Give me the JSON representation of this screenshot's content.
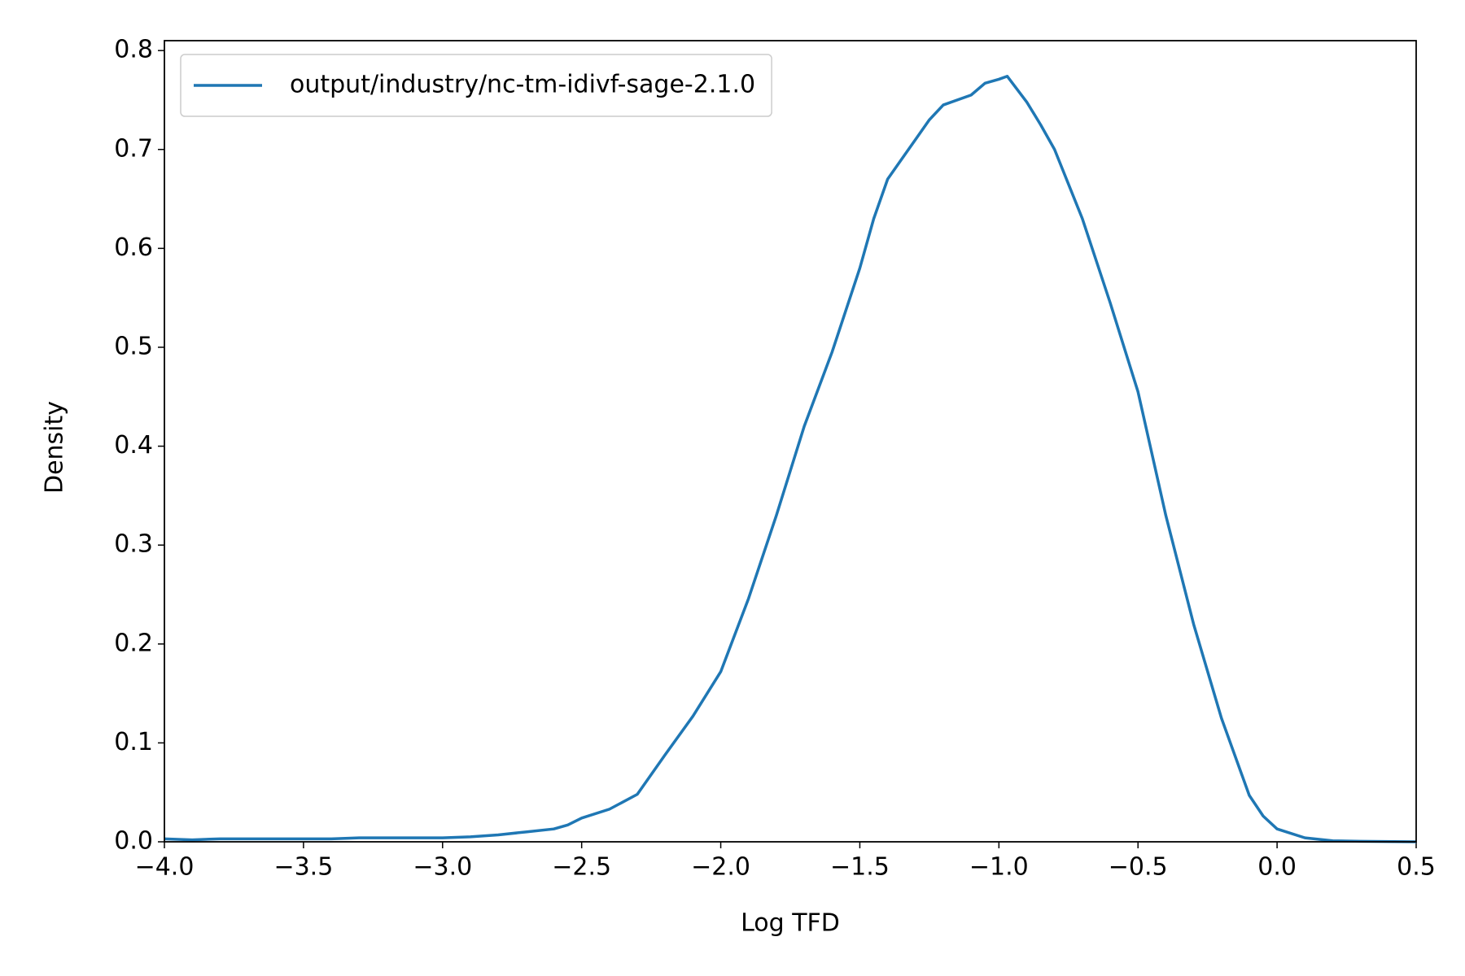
{
  "chart_data": {
    "type": "line",
    "x_label": "Log TFD",
    "y_label": "Density",
    "x": [
      -4.0,
      -3.9,
      -3.8,
      -3.7,
      -3.6,
      -3.5,
      -3.4,
      -3.3,
      -3.2,
      -3.1,
      -3.0,
      -2.9,
      -2.8,
      -2.7,
      -2.6,
      -2.55,
      -2.5,
      -2.4,
      -2.3,
      -2.2,
      -2.1,
      -2.0,
      -1.9,
      -1.8,
      -1.7,
      -1.6,
      -1.5,
      -1.45,
      -1.4,
      -1.35,
      -1.3,
      -1.25,
      -1.2,
      -1.1,
      -1.05,
      -1.0,
      -0.97,
      -0.9,
      -0.85,
      -0.8,
      -0.7,
      -0.6,
      -0.5,
      -0.4,
      -0.3,
      -0.2,
      -0.1,
      -0.05,
      0.0,
      0.1,
      0.2,
      0.3,
      0.5
    ],
    "series": [
      {
        "name": "output/industry/nc-tm-idivf-sage-2.1.0",
        "color": "#1f77b4",
        "values": [
          0.003,
          0.002,
          0.003,
          0.003,
          0.003,
          0.003,
          0.003,
          0.004,
          0.004,
          0.004,
          0.004,
          0.005,
          0.007,
          0.01,
          0.013,
          0.017,
          0.024,
          0.033,
          0.048,
          0.088,
          0.127,
          0.172,
          0.246,
          0.33,
          0.42,
          0.495,
          0.58,
          0.63,
          0.67,
          0.69,
          0.71,
          0.73,
          0.745,
          0.755,
          0.767,
          0.771,
          0.774,
          0.748,
          0.725,
          0.7,
          0.63,
          0.545,
          0.455,
          0.33,
          0.22,
          0.125,
          0.047,
          0.026,
          0.013,
          0.004,
          0.001,
          0.0005,
          0.0
        ]
      }
    ],
    "xlim": [
      -4.0,
      0.5
    ],
    "ylim": [
      0.0,
      0.81
    ],
    "xticks": [
      {
        "value": -4.0,
        "label": "−4.0"
      },
      {
        "value": -3.5,
        "label": "−3.5"
      },
      {
        "value": -3.0,
        "label": "−3.0"
      },
      {
        "value": -2.5,
        "label": "−2.5"
      },
      {
        "value": -2.0,
        "label": "−2.0"
      },
      {
        "value": -1.5,
        "label": "−1.5"
      },
      {
        "value": -1.0,
        "label": "−1.0"
      },
      {
        "value": -0.5,
        "label": "−0.5"
      },
      {
        "value": 0.0,
        "label": "0.0"
      },
      {
        "value": 0.5,
        "label": "0.5"
      }
    ],
    "yticks": [
      {
        "value": 0.0,
        "label": "0.0"
      },
      0.1,
      0.2,
      0.3,
      0.4,
      0.5,
      0.6,
      0.7,
      0.8
    ],
    "legend": "upper left"
  }
}
